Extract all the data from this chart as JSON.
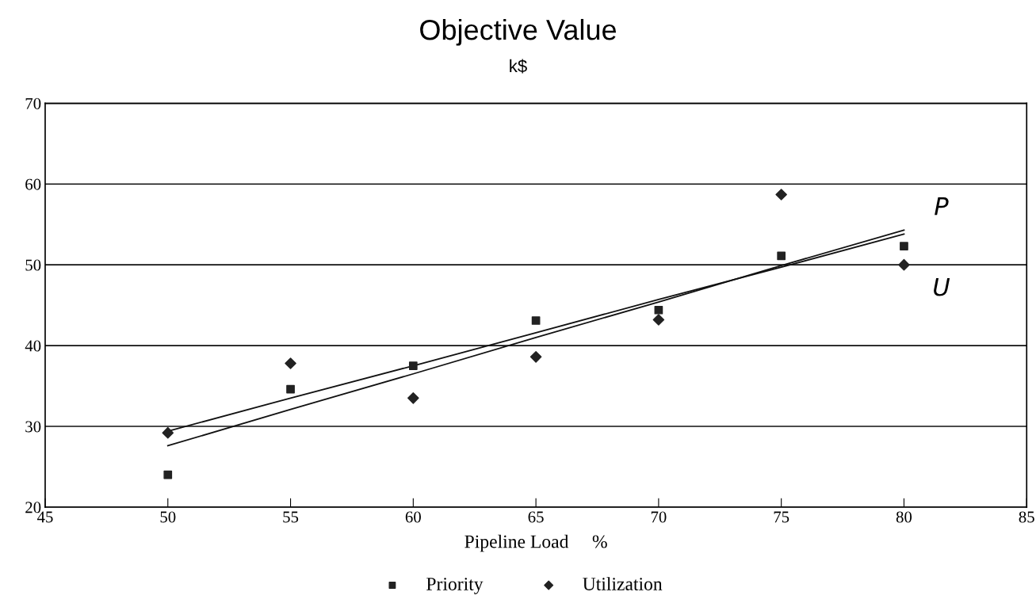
{
  "chart_data": {
    "type": "scatter",
    "title": "Objective Value",
    "subtitle": "k$",
    "xlabel": "Pipeline Load     %",
    "x": [
      50,
      55,
      60,
      65,
      70,
      75,
      80
    ],
    "series": [
      {
        "name": "Priority",
        "color": "#222222",
        "marker": "square",
        "values": [
          24,
          34.6,
          37.5,
          43.1,
          44.4,
          51.1,
          52.3
        ]
      },
      {
        "name": "Utilization",
        "color": "#222222",
        "marker": "diamond",
        "values": [
          29.2,
          37.8,
          33.5,
          38.6,
          43.2,
          58.7,
          50
        ]
      },
      {
        "type": "line",
        "color": "#111111",
        "values": [
          27.6,
          32.1,
          36.5,
          41.0,
          45.4,
          49.9,
          54.3
        ],
        "line_style": "solid"
      },
      {
        "type": "line",
        "color": "#111111",
        "values": [
          29.4,
          33.5,
          37.5,
          41.6,
          45.7,
          49.7,
          53.8
        ],
        "line_style": "solid"
      }
    ],
    "annotations": [
      "P",
      "U"
    ],
    "xlim": [
      45,
      85
    ],
    "xticks": [
      45,
      50,
      55,
      60,
      65,
      70,
      75,
      80,
      85
    ],
    "ylim": [
      20,
      70
    ],
    "yticks": [
      20,
      30,
      40,
      50,
      60,
      70
    ],
    "grid": "y",
    "legend": "bottom"
  }
}
